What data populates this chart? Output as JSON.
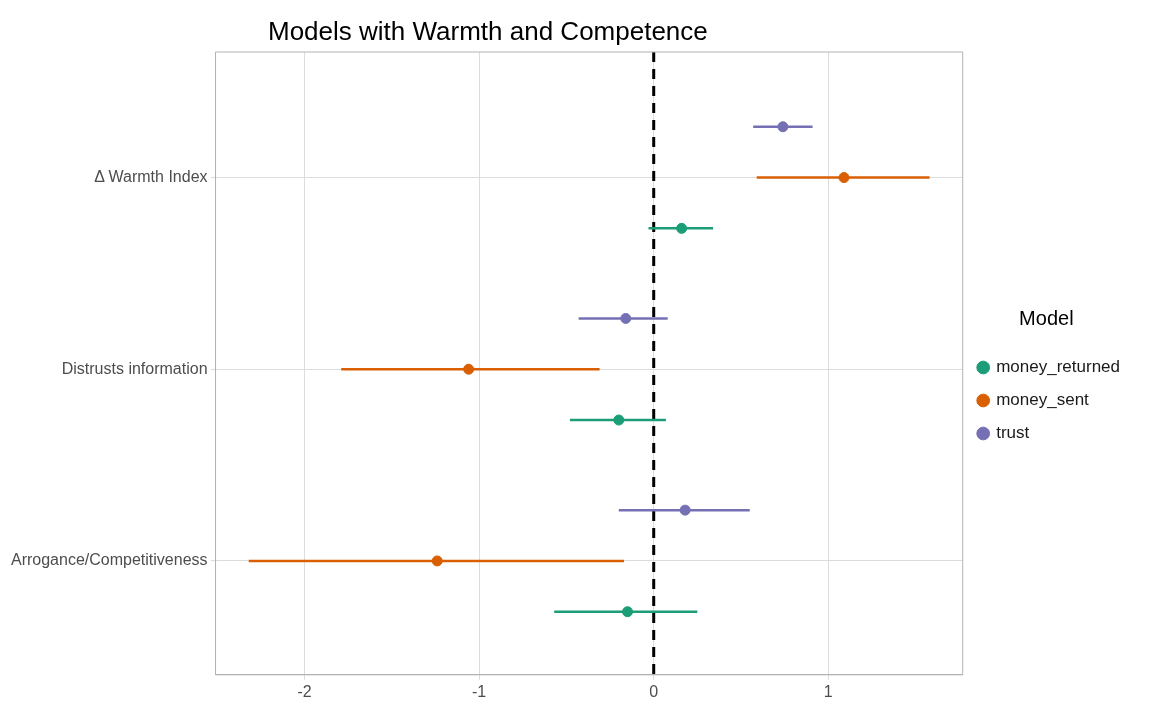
{
  "chart_data": {
    "type": "scatter",
    "orientation": "horizontal",
    "title": "Models with Warmth and Competence",
    "legend_title": "Model",
    "legend": "right",
    "grid": true,
    "marker": "circle",
    "categories": [
      "Δ Warmth Index",
      "Distrusts information",
      "Arrogance/Competitiveness"
    ],
    "xlim": [
      -2.51,
      1.77
    ],
    "xticks": [
      -2,
      -1,
      0,
      1
    ],
    "series": [
      {
        "name": "money_returned",
        "color": "#1b9e77",
        "values": [
          0.16,
          -0.2,
          -0.15
        ],
        "errors": [
          [
            -0.03,
            0.34
          ],
          [
            -0.48,
            0.07
          ],
          [
            -0.57,
            0.25
          ]
        ]
      },
      {
        "name": "money_sent",
        "color": "#d95f02",
        "values": [
          1.09,
          -1.06,
          -1.24
        ],
        "errors": [
          [
            0.59,
            1.58
          ],
          [
            -1.79,
            -0.31
          ],
          [
            -2.32,
            -0.17
          ]
        ]
      },
      {
        "name": "trust",
        "color": "#7570b3",
        "values": [
          0.74,
          -0.16,
          0.18
        ],
        "errors": [
          [
            0.57,
            0.91
          ],
          [
            -0.43,
            0.08
          ],
          [
            -0.2,
            0.55
          ]
        ]
      }
    ],
    "ref_lines": [
      {
        "axis": "x",
        "value": 0,
        "color": "#000000",
        "line_style": "dashed"
      }
    ]
  }
}
